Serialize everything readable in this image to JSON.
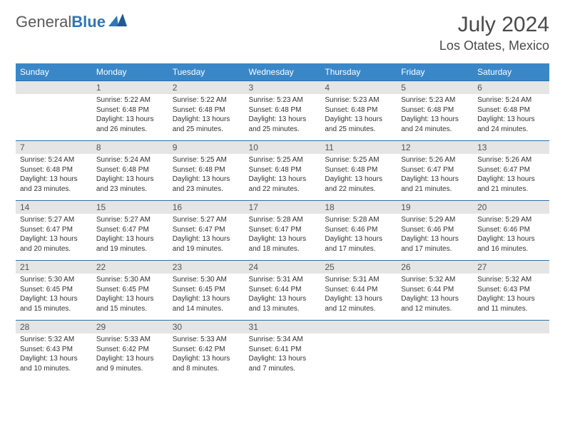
{
  "brand": {
    "word1": "General",
    "word2": "Blue"
  },
  "title": "July 2024",
  "location": "Los Otates, Mexico",
  "colors": {
    "header_bg": "#3a87c8",
    "header_text": "#ffffff",
    "daynum_bg": "#e5e5e5",
    "row_border": "#2f6fa8",
    "body_text": "#333333",
    "title_text": "#4a4a4a",
    "logo_grey": "#5a5a5a",
    "logo_blue": "#2f76b8",
    "background": "#ffffff"
  },
  "typography": {
    "title_fontsize": 30,
    "location_fontsize": 18,
    "weekday_fontsize": 12,
    "daynum_fontsize": 12,
    "cell_fontsize": 10,
    "logo_fontsize": 22
  },
  "weekdays": [
    "Sunday",
    "Monday",
    "Tuesday",
    "Wednesday",
    "Thursday",
    "Friday",
    "Saturday"
  ],
  "weeks": [
    [
      null,
      {
        "day": 1,
        "sunrise": "5:22 AM",
        "sunset": "6:48 PM",
        "daylight": "13 hours and 26 minutes."
      },
      {
        "day": 2,
        "sunrise": "5:22 AM",
        "sunset": "6:48 PM",
        "daylight": "13 hours and 25 minutes."
      },
      {
        "day": 3,
        "sunrise": "5:23 AM",
        "sunset": "6:48 PM",
        "daylight": "13 hours and 25 minutes."
      },
      {
        "day": 4,
        "sunrise": "5:23 AM",
        "sunset": "6:48 PM",
        "daylight": "13 hours and 25 minutes."
      },
      {
        "day": 5,
        "sunrise": "5:23 AM",
        "sunset": "6:48 PM",
        "daylight": "13 hours and 24 minutes."
      },
      {
        "day": 6,
        "sunrise": "5:24 AM",
        "sunset": "6:48 PM",
        "daylight": "13 hours and 24 minutes."
      }
    ],
    [
      {
        "day": 7,
        "sunrise": "5:24 AM",
        "sunset": "6:48 PM",
        "daylight": "13 hours and 23 minutes."
      },
      {
        "day": 8,
        "sunrise": "5:24 AM",
        "sunset": "6:48 PM",
        "daylight": "13 hours and 23 minutes."
      },
      {
        "day": 9,
        "sunrise": "5:25 AM",
        "sunset": "6:48 PM",
        "daylight": "13 hours and 23 minutes."
      },
      {
        "day": 10,
        "sunrise": "5:25 AM",
        "sunset": "6:48 PM",
        "daylight": "13 hours and 22 minutes."
      },
      {
        "day": 11,
        "sunrise": "5:25 AM",
        "sunset": "6:48 PM",
        "daylight": "13 hours and 22 minutes."
      },
      {
        "day": 12,
        "sunrise": "5:26 AM",
        "sunset": "6:47 PM",
        "daylight": "13 hours and 21 minutes."
      },
      {
        "day": 13,
        "sunrise": "5:26 AM",
        "sunset": "6:47 PM",
        "daylight": "13 hours and 21 minutes."
      }
    ],
    [
      {
        "day": 14,
        "sunrise": "5:27 AM",
        "sunset": "6:47 PM",
        "daylight": "13 hours and 20 minutes."
      },
      {
        "day": 15,
        "sunrise": "5:27 AM",
        "sunset": "6:47 PM",
        "daylight": "13 hours and 19 minutes."
      },
      {
        "day": 16,
        "sunrise": "5:27 AM",
        "sunset": "6:47 PM",
        "daylight": "13 hours and 19 minutes."
      },
      {
        "day": 17,
        "sunrise": "5:28 AM",
        "sunset": "6:47 PM",
        "daylight": "13 hours and 18 minutes."
      },
      {
        "day": 18,
        "sunrise": "5:28 AM",
        "sunset": "6:46 PM",
        "daylight": "13 hours and 17 minutes."
      },
      {
        "day": 19,
        "sunrise": "5:29 AM",
        "sunset": "6:46 PM",
        "daylight": "13 hours and 17 minutes."
      },
      {
        "day": 20,
        "sunrise": "5:29 AM",
        "sunset": "6:46 PM",
        "daylight": "13 hours and 16 minutes."
      }
    ],
    [
      {
        "day": 21,
        "sunrise": "5:30 AM",
        "sunset": "6:45 PM",
        "daylight": "13 hours and 15 minutes."
      },
      {
        "day": 22,
        "sunrise": "5:30 AM",
        "sunset": "6:45 PM",
        "daylight": "13 hours and 15 minutes."
      },
      {
        "day": 23,
        "sunrise": "5:30 AM",
        "sunset": "6:45 PM",
        "daylight": "13 hours and 14 minutes."
      },
      {
        "day": 24,
        "sunrise": "5:31 AM",
        "sunset": "6:44 PM",
        "daylight": "13 hours and 13 minutes."
      },
      {
        "day": 25,
        "sunrise": "5:31 AM",
        "sunset": "6:44 PM",
        "daylight": "13 hours and 12 minutes."
      },
      {
        "day": 26,
        "sunrise": "5:32 AM",
        "sunset": "6:44 PM",
        "daylight": "13 hours and 12 minutes."
      },
      {
        "day": 27,
        "sunrise": "5:32 AM",
        "sunset": "6:43 PM",
        "daylight": "13 hours and 11 minutes."
      }
    ],
    [
      {
        "day": 28,
        "sunrise": "5:32 AM",
        "sunset": "6:43 PM",
        "daylight": "13 hours and 10 minutes."
      },
      {
        "day": 29,
        "sunrise": "5:33 AM",
        "sunset": "6:42 PM",
        "daylight": "13 hours and 9 minutes."
      },
      {
        "day": 30,
        "sunrise": "5:33 AM",
        "sunset": "6:42 PM",
        "daylight": "13 hours and 8 minutes."
      },
      {
        "day": 31,
        "sunrise": "5:34 AM",
        "sunset": "6:41 PM",
        "daylight": "13 hours and 7 minutes."
      },
      null,
      null,
      null
    ]
  ],
  "labels": {
    "sunrise": "Sunrise:",
    "sunset": "Sunset:",
    "daylight": "Daylight:"
  }
}
